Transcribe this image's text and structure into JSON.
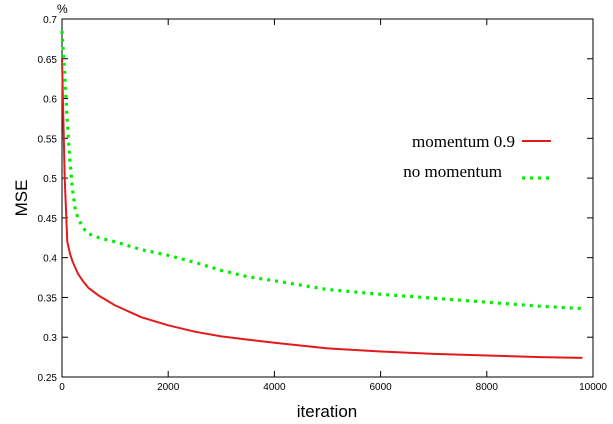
{
  "chart_data": {
    "type": "line",
    "title": "",
    "xlabel": "iteration",
    "ylabel": "MSE",
    "y_unit": "%",
    "xlim": [
      0,
      10000
    ],
    "ylim": [
      0.25,
      0.7
    ],
    "xticks": [
      0,
      2000,
      4000,
      6000,
      8000,
      10000
    ],
    "yticks": [
      0.25,
      0.3,
      0.35,
      0.4,
      0.45,
      0.5,
      0.55,
      0.6,
      0.65,
      0.7
    ],
    "xtick_labels": [
      "0",
      "2000",
      "4000",
      "6000",
      "8000",
      "10000"
    ],
    "ytick_labels": [
      "0.25",
      "0.3",
      "0.35",
      "0.4",
      "0.45",
      "0.5",
      "0.55",
      "0.6",
      "0.65",
      "0.7"
    ],
    "grid": false,
    "legend_position": "right, upper-middle",
    "series": [
      {
        "name": "momentum  0.9",
        "color": "#e31a1c",
        "style": "solid",
        "x": [
          0,
          50,
          100,
          150,
          200,
          300,
          400,
          500,
          700,
          1000,
          1500,
          2000,
          2500,
          3000,
          3500,
          4000,
          5000,
          6000,
          7000,
          8000,
          9000,
          9800
        ],
        "y": [
          0.65,
          0.5,
          0.42,
          0.405,
          0.395,
          0.38,
          0.37,
          0.362,
          0.352,
          0.34,
          0.325,
          0.315,
          0.307,
          0.301,
          0.297,
          0.293,
          0.286,
          0.282,
          0.279,
          0.277,
          0.275,
          0.274
        ]
      },
      {
        "name": "no momentum",
        "color": "#00ee00",
        "style": "dotted",
        "x": [
          0,
          50,
          100,
          150,
          200,
          250,
          300,
          400,
          500,
          700,
          1000,
          1500,
          2000,
          2500,
          3000,
          3500,
          4000,
          5000,
          6000,
          7000,
          8000,
          9000,
          9800
        ],
        "y": [
          0.685,
          0.63,
          0.57,
          0.52,
          0.485,
          0.46,
          0.45,
          0.437,
          0.43,
          0.425,
          0.42,
          0.41,
          0.403,
          0.394,
          0.384,
          0.376,
          0.371,
          0.36,
          0.354,
          0.349,
          0.344,
          0.339,
          0.336
        ]
      }
    ]
  }
}
